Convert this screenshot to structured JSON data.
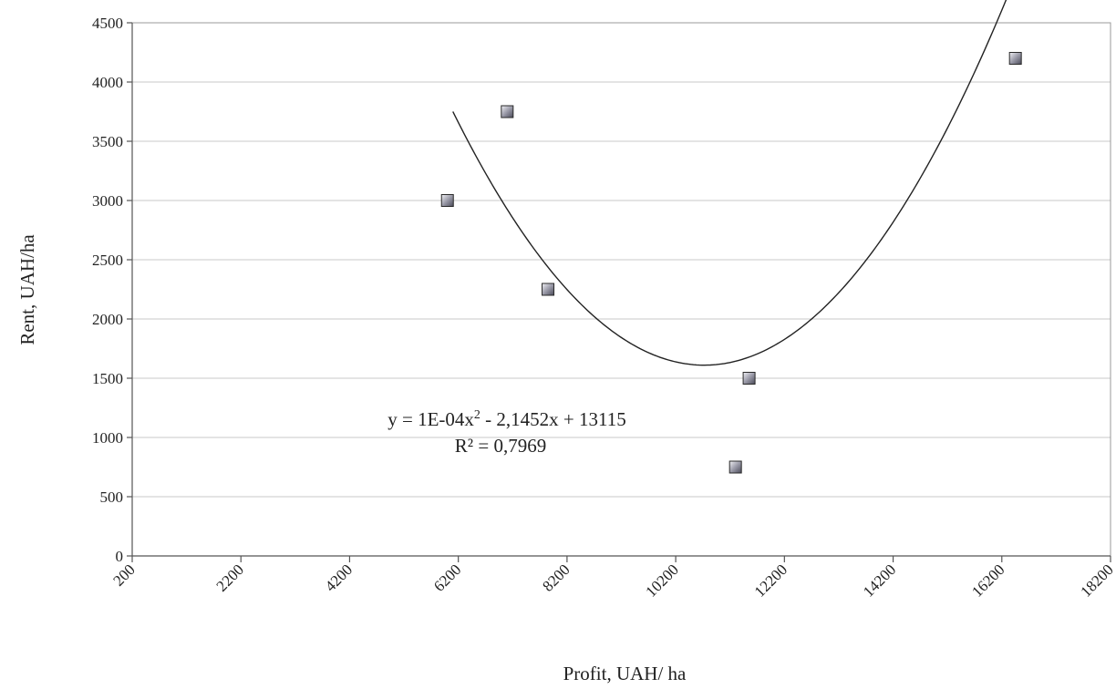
{
  "chart_data": {
    "type": "scatter",
    "title": "",
    "xlabel": "Profit, UAH/ ha",
    "ylabel": "Rent, UAH/ha",
    "xlim": [
      200,
      18200
    ],
    "ylim": [
      0,
      4500
    ],
    "x_ticks": [
      200,
      2200,
      4200,
      6200,
      8200,
      10200,
      12200,
      14200,
      16200,
      18200
    ],
    "y_ticks": [
      0,
      500,
      1000,
      1500,
      2000,
      2500,
      3000,
      3500,
      4000,
      4500
    ],
    "grid": "horizontal",
    "series": [
      {
        "points": [
          {
            "x": 6000,
            "y": 3000
          },
          {
            "x": 7100,
            "y": 3750
          },
          {
            "x": 7850,
            "y": 2250
          },
          {
            "x": 11300,
            "y": 750
          },
          {
            "x": 11550,
            "y": 1500
          },
          {
            "x": 16450,
            "y": 4200
          }
        ],
        "color": "#8c8c9a"
      }
    ],
    "trendline": {
      "type": "polynomial",
      "order": 2,
      "coefficients": [
        0.0001,
        -2.1452,
        13115
      ],
      "x_range": [
        6100,
        16400
      ],
      "color": "#222222"
    },
    "annotations": {
      "equation_prefix": "y = 1E-04x",
      "equation_exponent": "2",
      "equation_suffix": " - 2,1452x + 13115",
      "r_squared": "R² = 0,7969"
    }
  }
}
